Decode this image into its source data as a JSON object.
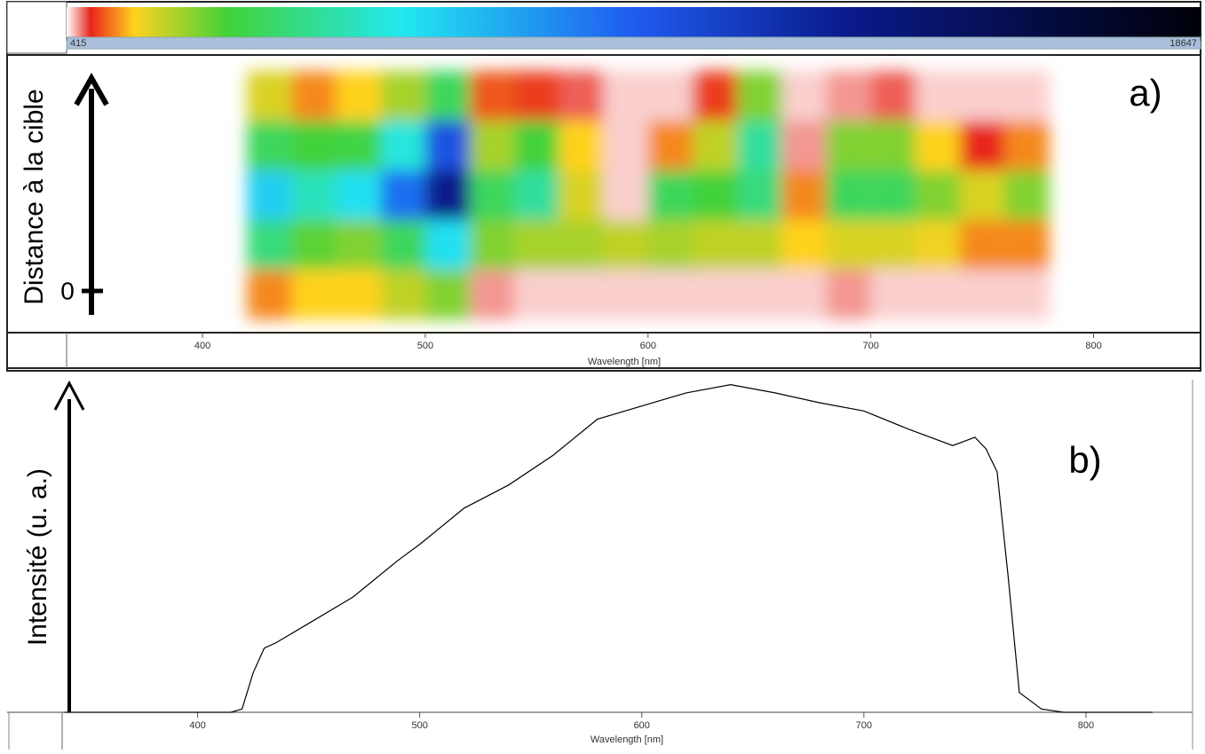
{
  "chart_data": [
    {
      "type": "heatmap",
      "xlabel": "Wavelength [nm]",
      "ylabel": "Distance à la cible",
      "annotations": [
        "0",
        "a)"
      ],
      "xlim": [
        339,
        848
      ],
      "xticks": [
        400,
        500,
        600,
        700,
        800
      ],
      "x": [
        430,
        450,
        470,
        490,
        510,
        530,
        550,
        570,
        590,
        610,
        630,
        650,
        670,
        690,
        710,
        730,
        750,
        770
      ],
      "values": [
        [
          1800,
          1200,
          1500,
          2200,
          3500,
          1000,
          900,
          700,
          500,
          500,
          900,
          2500,
          500,
          600,
          700,
          500,
          500,
          500
        ],
        [
          3500,
          3000,
          3200,
          5500,
          10000,
          2200,
          3000,
          1500,
          500,
          1200,
          2000,
          4500,
          600,
          2500,
          2500,
          1500,
          800,
          1200
        ],
        [
          6500,
          5000,
          6000,
          9000,
          13000,
          3500,
          4500,
          1800,
          500,
          3500,
          3000,
          4000,
          1200,
          3500,
          3500,
          2500,
          1800,
          2500
        ],
        [
          4000,
          2800,
          2500,
          3500,
          6000,
          2500,
          2200,
          2200,
          2000,
          2200,
          2000,
          2000,
          1500,
          1800,
          1800,
          1600,
          1200,
          1200
        ],
        [
          1200,
          1500,
          1500,
          2000,
          2500,
          600,
          500,
          500,
          500,
          500,
          500,
          500,
          500,
          600,
          500,
          500,
          500,
          500
        ]
      ],
      "colorbar": {
        "lim": [
          415,
          18647
        ],
        "ticks": [
          415,
          18647
        ],
        "colormap": [
          {
            "value": 415,
            "color": "#ffffff"
          },
          {
            "value": 800,
            "color": "#e8251c"
          },
          {
            "value": 1500,
            "color": "#ffd21f"
          },
          {
            "value": 3000,
            "color": "#42d23a"
          },
          {
            "value": 5800,
            "color": "#22e8f0"
          },
          {
            "value": 9500,
            "color": "#1f5cf0"
          },
          {
            "value": 13000,
            "color": "#0a1a8a"
          },
          {
            "value": 18647,
            "color": "#000008"
          }
        ]
      }
    },
    {
      "type": "line",
      "xlabel": "Wavelength [nm]",
      "ylabel": "Intensité (u. a.)",
      "annotations": [
        "b)"
      ],
      "color": "#000000",
      "xlim": [
        339,
        848
      ],
      "ylim": [
        0,
        101
      ],
      "xticks": [
        400,
        500,
        600,
        700,
        800
      ],
      "x": [
        340,
        360,
        380,
        400,
        415,
        420,
        425,
        430,
        435,
        450,
        470,
        490,
        500,
        520,
        540,
        560,
        580,
        600,
        620,
        640,
        660,
        680,
        700,
        720,
        740,
        750,
        755,
        760,
        765,
        770,
        780,
        790,
        810,
        830
      ],
      "values": [
        0,
        0,
        0,
        0,
        0,
        1,
        12,
        19.5,
        21,
        27,
        35,
        46,
        51,
        62,
        69,
        78,
        89,
        93,
        97,
        99.5,
        97,
        94,
        91.5,
        86,
        81,
        83.5,
        80,
        73,
        41,
        6,
        1,
        0,
        0,
        0
      ]
    }
  ]
}
